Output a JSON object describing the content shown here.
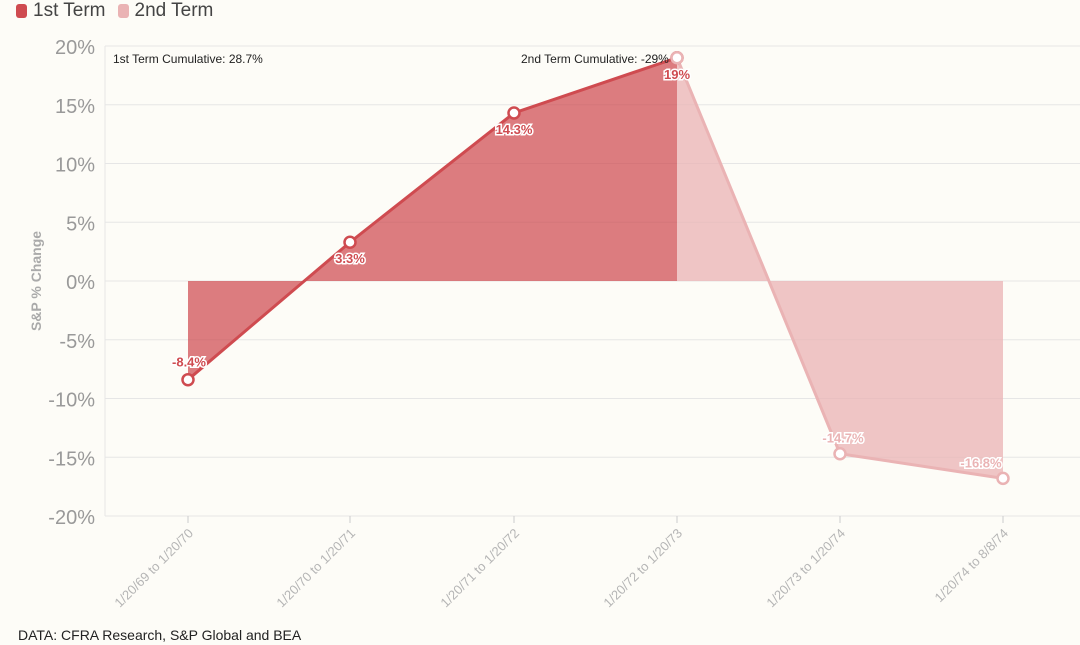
{
  "source": "DATA: CFRA Research, S&P Global and BEA",
  "colors": {
    "first_term": "#cf4b50",
    "second_term": "#eab3b4",
    "grid": "#e6e6e6",
    "tick": "#999999"
  },
  "chart_data": {
    "type": "area",
    "xlabel": "",
    "ylabel": "S&P % Change",
    "ylim": [
      -20,
      20
    ],
    "y_ticks": [
      20,
      15,
      10,
      5,
      0,
      -5,
      -10,
      -15,
      -20
    ],
    "y_tick_labels": [
      "20%",
      "15%",
      "10%",
      "5%",
      "0%",
      "-5%",
      "-10%",
      "-15%",
      "-20%"
    ],
    "categories": [
      "1/20/69 to 1/20/70",
      "1/20/70 to 1/20/71",
      "1/20/71 to 1/20/72",
      "1/20/72 to 1/20/73",
      "1/20/73 to 1/20/74",
      "1/20/74 to 8/8/74"
    ],
    "series": [
      {
        "name": "1st Term",
        "values": [
          -8.4,
          3.3,
          14.3,
          19,
          null,
          null
        ],
        "labels": [
          "-8.4%",
          "3.3%",
          "14.3%",
          "19%",
          "",
          ""
        ]
      },
      {
        "name": "2nd Term",
        "values": [
          null,
          null,
          null,
          19,
          -14.7,
          -16.8
        ],
        "labels": [
          "",
          "",
          "",
          "",
          "-14.7%",
          "-16.8%"
        ]
      }
    ],
    "annotations": [
      {
        "text": "1st Term Cumulative: 28.7%"
      },
      {
        "text": "2nd Term Cumulative: -29%"
      }
    ],
    "legend": "top-left",
    "grid": true
  }
}
